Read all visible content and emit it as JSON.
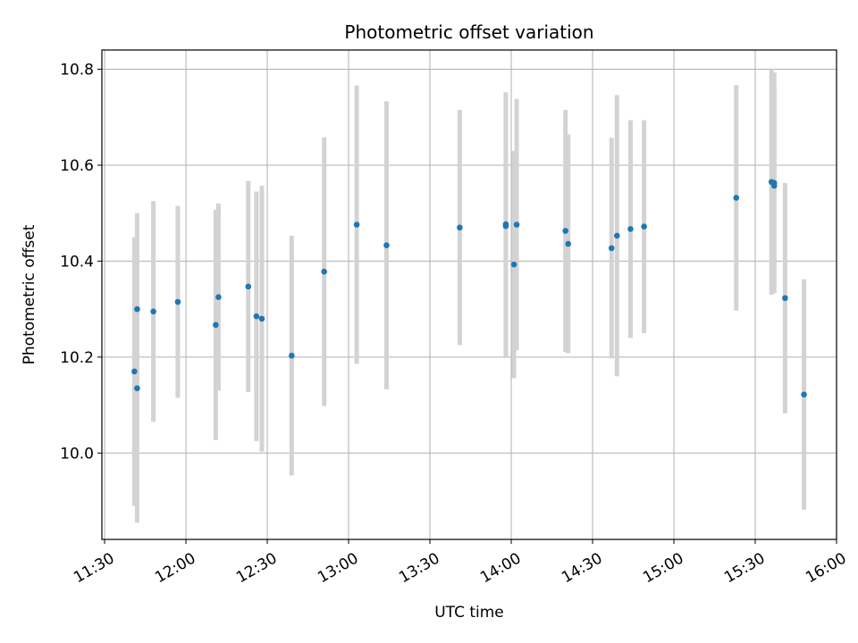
{
  "chart_data": {
    "type": "scatter",
    "title": "Photometric offset variation",
    "xlabel": "UTC time",
    "ylabel": "Photometric offset",
    "x_tick_labels": [
      "11:30",
      "12:00",
      "12:30",
      "13:00",
      "13:30",
      "14:00",
      "14:30",
      "15:00",
      "15:30",
      "16:00"
    ],
    "y_tick_labels": [
      "10.0",
      "10.2",
      "10.4",
      "10.6",
      "10.8"
    ],
    "xlim": [
      "11:29",
      "16:00"
    ],
    "ylim": [
      9.82,
      10.84
    ],
    "grid": true,
    "colors": {
      "points": "#1f77b4",
      "errorbars": "#d3d3d3",
      "grid": "#b0b0b0"
    },
    "points": [
      {
        "x": "11:41",
        "y": 10.17,
        "yerr": 0.28
      },
      {
        "x": "11:42",
        "y": 10.135,
        "yerr": 0.28
      },
      {
        "x": "11:42",
        "y": 10.3,
        "yerr": 0.2
      },
      {
        "x": "11:48",
        "y": 10.295,
        "yerr": 0.23
      },
      {
        "x": "11:57",
        "y": 10.315,
        "yerr": 0.2
      },
      {
        "x": "12:11",
        "y": 10.267,
        "yerr": 0.24
      },
      {
        "x": "12:12",
        "y": 10.325,
        "yerr": 0.195
      },
      {
        "x": "12:23",
        "y": 10.347,
        "yerr": 0.22
      },
      {
        "x": "12:26",
        "y": 10.285,
        "yerr": 0.26
      },
      {
        "x": "12:28",
        "y": 10.28,
        "yerr": 0.277
      },
      {
        "x": "12:39",
        "y": 10.203,
        "yerr": 0.25
      },
      {
        "x": "12:51",
        "y": 10.378,
        "yerr": 0.28
      },
      {
        "x": "13:03",
        "y": 10.476,
        "yerr": 0.29
      },
      {
        "x": "13:14",
        "y": 10.433,
        "yerr": 0.3
      },
      {
        "x": "13:41",
        "y": 10.47,
        "yerr": 0.245
      },
      {
        "x": "13:58",
        "y": 10.477,
        "yerr": 0.275
      },
      {
        "x": "13:58",
        "y": 10.473,
        "yerr": 0.275
      },
      {
        "x": "14:01",
        "y": 10.393,
        "yerr": 0.237
      },
      {
        "x": "14:02",
        "y": 10.476,
        "yerr": 0.262
      },
      {
        "x": "14:20",
        "y": 10.463,
        "yerr": 0.252
      },
      {
        "x": "14:21",
        "y": 10.436,
        "yerr": 0.228
      },
      {
        "x": "14:37",
        "y": 10.427,
        "yerr": 0.23
      },
      {
        "x": "14:39",
        "y": 10.453,
        "yerr": 0.293
      },
      {
        "x": "14:44",
        "y": 10.467,
        "yerr": 0.227
      },
      {
        "x": "14:49",
        "y": 10.472,
        "yerr": 0.222
      },
      {
        "x": "15:23",
        "y": 10.532,
        "yerr": 0.235
      },
      {
        "x": "15:36",
        "y": 10.565,
        "yerr": 0.235
      },
      {
        "x": "15:37",
        "y": 10.563,
        "yerr": 0.23
      },
      {
        "x": "15:37",
        "y": 10.557,
        "yerr": 0.215
      },
      {
        "x": "15:41",
        "y": 10.323,
        "yerr": 0.24
      },
      {
        "x": "15:48",
        "y": 10.122,
        "yerr": 0.24
      }
    ]
  }
}
